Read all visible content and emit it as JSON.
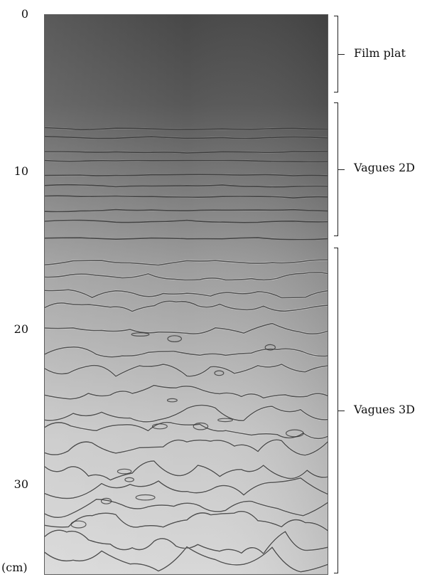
{
  "figure": {
    "axis": {
      "unit": "(cm)",
      "ticks": [
        "0",
        "10",
        "20",
        "30"
      ]
    },
    "regions": [
      {
        "label": "Film plat"
      },
      {
        "label": "Vagues 2D"
      },
      {
        "label": "Vagues 3D"
      }
    ],
    "colors": {
      "photo_top": "#494949",
      "photo_bottom": "#d6d6d6",
      "wave_dark": "#2e2e2e",
      "wave_light": "#f2f2f2"
    }
  }
}
